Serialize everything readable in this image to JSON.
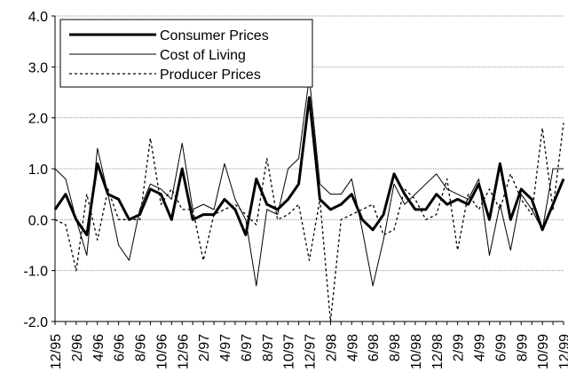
{
  "chart_data": {
    "type": "line",
    "categories": [
      "12/95",
      null,
      "2/96",
      null,
      "4/96",
      null,
      "6/96",
      null,
      "8/96",
      null,
      "10/96",
      null,
      "12/96",
      null,
      "2/97",
      null,
      "4/97",
      null,
      "6/97",
      null,
      "8/97",
      null,
      "10/97",
      null,
      "12/97",
      null,
      "2/98",
      null,
      "4/98",
      null,
      "6/98",
      null,
      "8/98",
      null,
      "10/98",
      null,
      "12/98",
      null,
      "2/99",
      null,
      "4/99",
      null,
      "6/99",
      null,
      "8/99",
      null,
      "10/99",
      null,
      "12/99"
    ],
    "series": [
      {
        "name": "Consumer Prices",
        "color": "#000000",
        "width": 3,
        "dash": false,
        "values": [
          0.2,
          0.5,
          0.0,
          -0.3,
          1.1,
          0.5,
          0.4,
          0.0,
          0.1,
          0.6,
          0.5,
          0.0,
          1.0,
          0.0,
          0.1,
          0.1,
          0.4,
          0.2,
          -0.3,
          0.8,
          0.3,
          0.2,
          0.4,
          0.7,
          2.4,
          0.4,
          0.2,
          0.3,
          0.5,
          0.0,
          -0.2,
          0.1,
          0.9,
          0.5,
          0.2,
          0.2,
          0.5,
          0.3,
          0.4,
          0.3,
          0.7,
          0.0,
          1.1,
          0.0,
          0.6,
          0.4,
          -0.2,
          0.3,
          0.8
        ]
      },
      {
        "name": "Cost of Living",
        "color": "#000000",
        "width": 1,
        "dash": false,
        "values": [
          1.0,
          0.8,
          0.0,
          -0.7,
          1.4,
          0.5,
          -0.5,
          -0.8,
          0.2,
          0.7,
          0.6,
          0.4,
          1.5,
          0.2,
          0.3,
          0.2,
          1.1,
          0.4,
          0.0,
          -1.3,
          0.2,
          0.1,
          1.0,
          1.2,
          2.8,
          0.7,
          0.5,
          0.5,
          0.8,
          -0.2,
          -1.3,
          -0.4,
          0.7,
          0.3,
          0.5,
          0.7,
          0.9,
          0.6,
          0.5,
          0.4,
          0.8,
          -0.7,
          0.3,
          -0.6,
          0.5,
          0.2,
          -0.2,
          1.0,
          1.0
        ]
      },
      {
        "name": "Producer Prices",
        "color": "#000000",
        "width": 1.3,
        "dash": true,
        "values": [
          0.0,
          -0.1,
          -1.0,
          0.5,
          -0.4,
          0.6,
          0.0,
          0.0,
          0.0,
          1.6,
          0.3,
          0.6,
          0.2,
          0.2,
          -0.8,
          0.1,
          0.2,
          0.3,
          0.1,
          -0.1,
          1.2,
          0.0,
          0.1,
          0.3,
          -0.8,
          0.4,
          -2.0,
          0.0,
          0.1,
          0.2,
          0.3,
          -0.3,
          -0.2,
          0.6,
          0.4,
          0.0,
          0.1,
          0.8,
          -0.6,
          0.5,
          0.2,
          0.6,
          0.2,
          0.9,
          0.4,
          0.1,
          1.8,
          0.2,
          1.9
        ]
      }
    ],
    "ylim": [
      -2,
      4
    ],
    "yticks": [
      {
        "value": -2,
        "label": "-2.0"
      },
      {
        "value": -1,
        "label": "-1.0"
      },
      {
        "value": 0,
        "label": "0.0"
      },
      {
        "value": 1,
        "label": "1.0"
      },
      {
        "value": 2,
        "label": "2.0"
      },
      {
        "value": 3,
        "label": "3.0"
      },
      {
        "value": 4,
        "label": "4.0"
      }
    ],
    "grid": true,
    "legend": "upper-left"
  }
}
